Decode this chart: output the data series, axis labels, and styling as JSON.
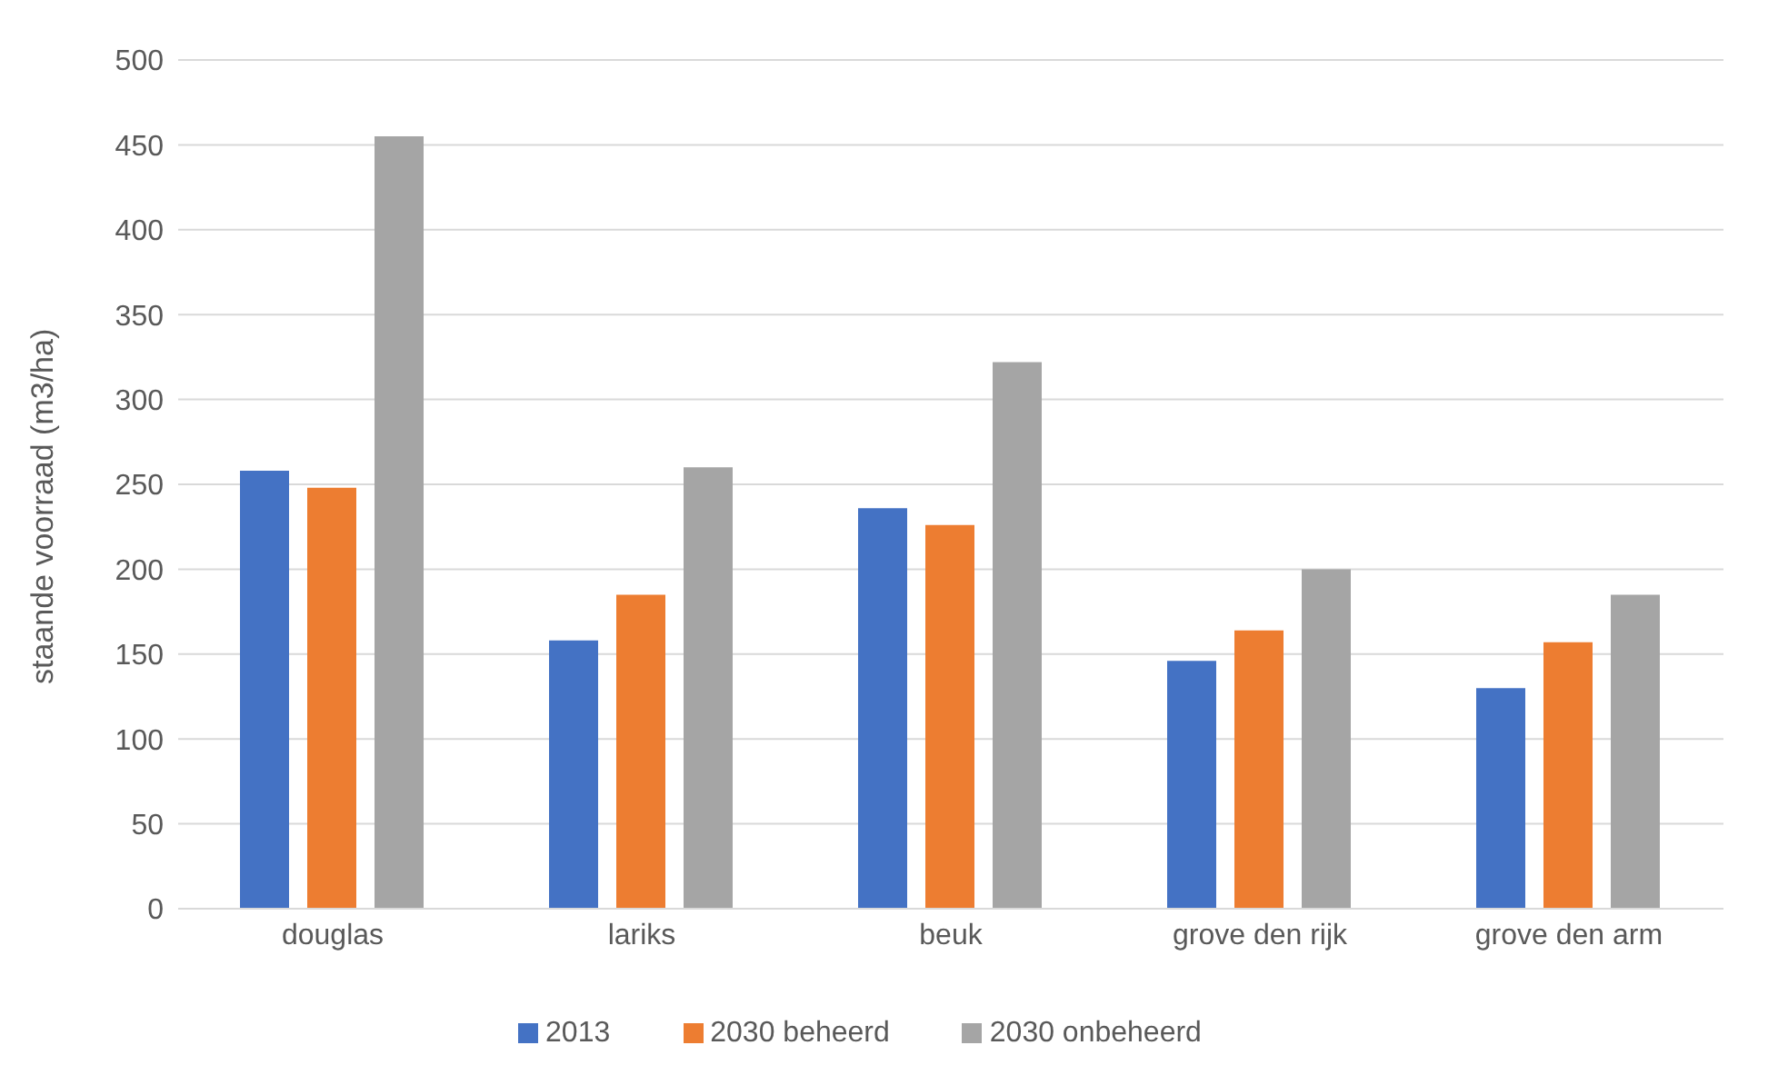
{
  "chart_data": {
    "type": "bar",
    "ylabel": "staande voorraad (m3/ha)",
    "categories": [
      "douglas",
      "lariks",
      "beuk",
      "grove den rijk",
      "grove den arm"
    ],
    "series": [
      {
        "name": "2013",
        "color": "#4472c4",
        "values": [
          258,
          158,
          236,
          146,
          130
        ]
      },
      {
        "name": "2030 beheerd",
        "color": "#ed7d31",
        "values": [
          248,
          185,
          226,
          164,
          157
        ]
      },
      {
        "name": "2030 onbeheerd",
        "color": "#a5a5a5",
        "values": [
          455,
          260,
          322,
          200,
          185
        ]
      }
    ],
    "ylim": [
      0,
      500
    ],
    "yticks": [
      0,
      50,
      100,
      150,
      200,
      250,
      300,
      350,
      400,
      450,
      500
    ],
    "grid": "y",
    "legend": "bottom"
  }
}
